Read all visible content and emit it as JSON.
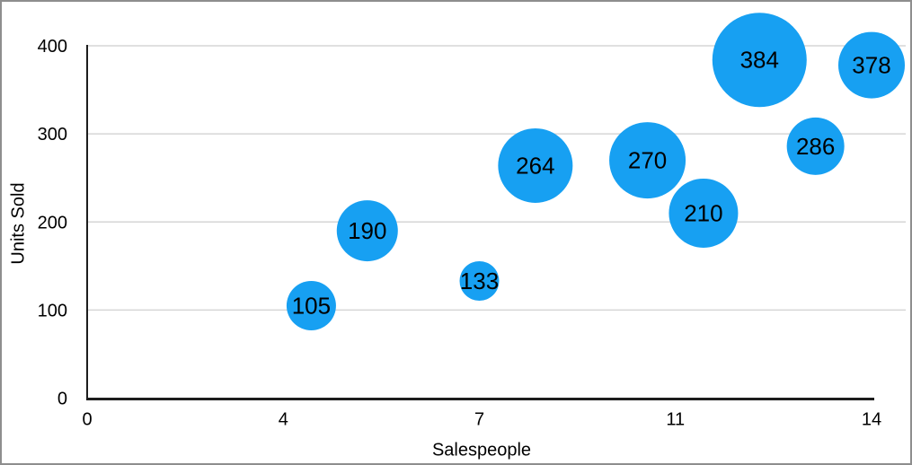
{
  "chart_data": {
    "type": "scatter",
    "variant": "bubble",
    "title": "",
    "xlabel": "Salespeople",
    "ylabel": "Units Sold",
    "xlim": [
      0,
      14
    ],
    "ylim": [
      0,
      400
    ],
    "x_tick_labels": [
      "0",
      "4",
      "7",
      "11",
      "14"
    ],
    "y_tick_labels": [
      "0",
      "100",
      "200",
      "300",
      "400"
    ],
    "grid": "horizontal-only",
    "legend": "none",
    "points": [
      {
        "x": 4,
        "y": 105,
        "label": "105",
        "radius_px": 27.5
      },
      {
        "x": 5,
        "y": 190,
        "label": "190",
        "radius_px": 34
      },
      {
        "x": 7,
        "y": 133,
        "label": "133",
        "radius_px": 22
      },
      {
        "x": 8,
        "y": 264,
        "label": "264",
        "radius_px": 41.5
      },
      {
        "x": 10,
        "y": 270,
        "label": "270",
        "radius_px": 42.5
      },
      {
        "x": 11,
        "y": 210,
        "label": "210",
        "radius_px": 38.5
      },
      {
        "x": 12,
        "y": 384,
        "label": "384",
        "radius_px": 52.5
      },
      {
        "x": 13,
        "y": 286,
        "label": "286",
        "radius_px": 32
      },
      {
        "x": 14,
        "y": 378,
        "label": "378",
        "radius_px": 37
      }
    ],
    "colors": {
      "bubble_fill": "#17A0F2",
      "bubble_label": "#000000",
      "gridline": "#d6d6d6",
      "axis_line": "#1d1d1d",
      "tick_label": "#000000",
      "border": "#8e8e8e",
      "background": "#ffffff"
    }
  }
}
